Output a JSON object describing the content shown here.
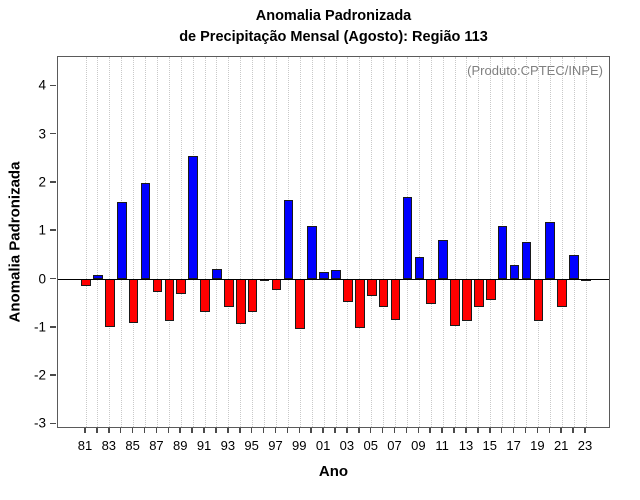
{
  "chart_data": {
    "type": "bar",
    "title_line1": "Anomalia Padronizada",
    "title_line2": "de Precipitação Mensal (Agosto): Região 113",
    "annotation": "(Produto:CPTEC/INPE)",
    "xlabel": "Ano",
    "ylabel": "Anomalia Padronizada",
    "ylim": [
      -3.1,
      4.6
    ],
    "yticks": [
      4,
      3,
      2,
      1,
      0,
      -1,
      -2,
      -3
    ],
    "x_tick_labels": [
      "81",
      "83",
      "85",
      "87",
      "89",
      "91",
      "93",
      "95",
      "97",
      "99",
      "01",
      "03",
      "05",
      "07",
      "09",
      "11",
      "13",
      "15",
      "17",
      "19",
      "21",
      "23"
    ],
    "grid": "vertical-dotted-per-year",
    "legend_position": "none",
    "colors": {
      "positive_bar": "#0000ff",
      "negative_bar": "#ff0000",
      "bar_border": "#1a1a1a",
      "annotation_text": "#808080",
      "gridline": "#c9c9c9",
      "axis_box": "#5a5a5a",
      "zero_line": "#000000",
      "text": "#000000"
    },
    "categories": [
      "81",
      "82",
      "83",
      "84",
      "85",
      "86",
      "87",
      "88",
      "89",
      "90",
      "91",
      "92",
      "93",
      "94",
      "95",
      "96",
      "97",
      "98",
      "99",
      "00",
      "01",
      "02",
      "03",
      "04",
      "05",
      "06",
      "07",
      "08",
      "09",
      "10",
      "11",
      "12",
      "13",
      "14",
      "15",
      "16",
      "17",
      "18",
      "19",
      "20",
      "21",
      "22",
      "23"
    ],
    "values": [
      -0.15,
      0.1,
      -1.0,
      1.6,
      -0.92,
      2.0,
      -0.28,
      -0.87,
      -0.33,
      2.55,
      -0.7,
      0.22,
      -0.6,
      -0.95,
      -0.7,
      -0.05,
      -0.24,
      1.65,
      -1.05,
      1.1,
      0.15,
      0.2,
      -0.48,
      -1.02,
      -0.36,
      -0.6,
      -0.85,
      1.7,
      0.47,
      -0.52,
      0.82,
      -0.98,
      -0.88,
      -0.58,
      -0.45,
      1.1,
      0.3,
      0.77,
      -0.87,
      1.2,
      -0.6,
      0.5,
      -0.03
    ]
  }
}
